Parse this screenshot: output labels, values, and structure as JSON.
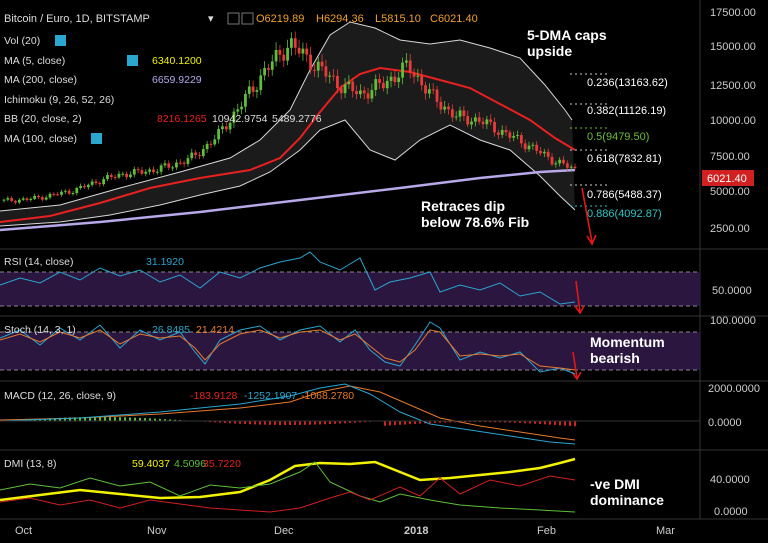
{
  "header": {
    "symbol": "Bitcoin / Euro, 1D, BITSTAMP",
    "open": "O6219.89",
    "high": "H6294.36",
    "low": "L5815.10",
    "close": "C6021.40"
  },
  "indicators": {
    "vol": {
      "label": "Vol (20)"
    },
    "ma5": {
      "label": "MA (5, close)",
      "value": "6340.1200"
    },
    "ma200": {
      "label": "MA (200, close)",
      "value": "6659.9229"
    },
    "ichimoku": {
      "label": "Ichimoku (9, 26, 52, 26)"
    },
    "bb": {
      "label": "BB (20, close, 2)",
      "v1": "8216.1265",
      "v2": "10942.9754",
      "v3": "5489.2776"
    },
    "ma100": {
      "label": "MA (100, close)"
    }
  },
  "price_axis": {
    "ticks": [
      "17500.00",
      "15000.00",
      "12500.00",
      "10000.00",
      "7500.00",
      "5000.00",
      "2500.00"
    ],
    "current_price": "6021.40"
  },
  "fib_levels": [
    {
      "label": "0.236(13163.62)",
      "color": "#ffffff"
    },
    {
      "label": "0.382(11126.19)",
      "color": "#ffffff"
    },
    {
      "label": "0.5(9479.50)",
      "color": "#6cbf3a"
    },
    {
      "label": "0.618(7832.81)",
      "color": "#ffffff"
    },
    {
      "label": "0.786(5488.37)",
      "color": "#ffffff"
    },
    {
      "label": "0.886(4092.87)",
      "color": "#2ec4c4"
    }
  ],
  "annotations": {
    "dma_line1": "5-DMA caps",
    "dma_line2": "upside",
    "fib_line1": "Retraces dip",
    "fib_line2": "below 78.6% Fib",
    "mom_line1": "Momentum",
    "mom_line2": "bearish",
    "dmi_line1": "-ve DMI",
    "dmi_line2": "dominance"
  },
  "rsi": {
    "label": "RSI (14, close)",
    "value": "31.1920",
    "axis_tick": "50.0000"
  },
  "stoch": {
    "label": "Stoch (14, 3, 1)",
    "k": "26.8485",
    "d": "21.4214",
    "axis_tick": "100.0000"
  },
  "macd": {
    "label": "MACD (12, 26, close, 9)",
    "hist": "-183.9128",
    "macd": "-1252.1907",
    "signal": "-1068.2780",
    "axis_top": "2000.0000",
    "axis_zero": "0.0000"
  },
  "dmi": {
    "label": "DMI (13, 8)",
    "adx": "59.4037",
    "plus": "4.5096",
    "minus": "35.7220",
    "axis_top": "40.0000",
    "axis_zero": "0.0000"
  },
  "time_axis": [
    "Oct",
    "Nov",
    "Dec",
    "2018",
    "Feb",
    "Mar"
  ],
  "colors": {
    "background": "#000000",
    "up_candle": "#5fbf3a",
    "down_candle": "#e83a3a",
    "ma5": "#e82020",
    "ma200": "#b7a8e8",
    "bollinger": "#d8d8d8",
    "rsi_line": "#2aa6cf",
    "osc_fill": "#2b1640",
    "adx": "#f2f200",
    "annotation_arrow": "#e01818"
  },
  "chart_data": {
    "type": "candlestick",
    "title": "Bitcoin / Euro, 1D, BITSTAMP",
    "x": [
      "Oct",
      "Nov",
      "Dec",
      "2018",
      "Feb",
      "Mar"
    ],
    "price_close_approx": [
      3700,
      3800,
      4100,
      4500,
      5200,
      5700,
      5900,
      6300,
      7000,
      8600,
      11000,
      13500,
      15500,
      14000,
      12500,
      11700,
      12500,
      13800,
      11500,
      10000,
      9700,
      8800,
      7900,
      6800,
      6021
    ],
    "ylim": [
      1500,
      18000
    ],
    "y_ticks": [
      2500,
      5000,
      7500,
      10000,
      12500,
      15000,
      17500
    ],
    "last": 6021.4
  }
}
